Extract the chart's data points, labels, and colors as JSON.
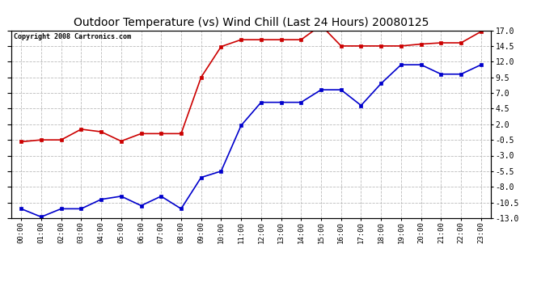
{
  "title": "Outdoor Temperature (vs) Wind Chill (Last 24 Hours) 20080125",
  "copyright": "Copyright 2008 Cartronics.com",
  "x_labels": [
    "00:00",
    "01:00",
    "02:00",
    "03:00",
    "04:00",
    "05:00",
    "06:00",
    "07:00",
    "08:00",
    "09:00",
    "10:00",
    "11:00",
    "12:00",
    "13:00",
    "14:00",
    "15:00",
    "16:00",
    "17:00",
    "18:00",
    "19:00",
    "20:00",
    "21:00",
    "22:00",
    "23:00"
  ],
  "temp_red": [
    -0.8,
    -0.5,
    -0.5,
    1.2,
    0.8,
    -0.7,
    0.5,
    0.5,
    0.5,
    9.5,
    14.4,
    15.5,
    15.5,
    15.5,
    15.5,
    17.8,
    14.5,
    14.5,
    14.5,
    14.5,
    14.8,
    15.0,
    15.0,
    16.8
  ],
  "wind_chill_blue": [
    -11.5,
    -12.8,
    -11.5,
    -11.5,
    -10.0,
    -9.5,
    -11.0,
    -9.5,
    -11.5,
    -6.5,
    -5.5,
    1.8,
    5.5,
    5.5,
    5.5,
    7.5,
    7.5,
    5.0,
    8.5,
    11.5,
    11.5,
    10.0,
    10.0,
    11.5
  ],
  "red_color": "#cc0000",
  "blue_color": "#0000cc",
  "bg_color": "#ffffff",
  "plot_bg_color": "#ffffff",
  "grid_color": "#bbbbbb",
  "ylim_min": -13.0,
  "ylim_max": 17.0,
  "yticks_right": [
    17.0,
    14.5,
    12.0,
    9.5,
    7.0,
    4.5,
    2.0,
    -0.5,
    -3.0,
    -5.5,
    -8.0,
    -10.5,
    -13.0
  ]
}
